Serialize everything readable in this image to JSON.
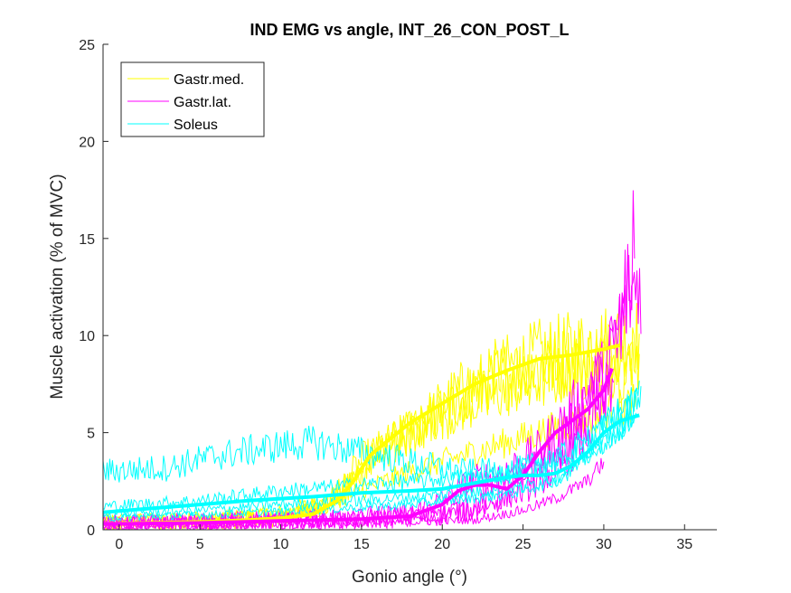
{
  "chart_data": {
    "type": "line",
    "title": "IND EMG vs angle, INT_26_CON_POST_L",
    "xlabel": "Gonio angle (°)",
    "ylabel": "Muscle activation (% of MVC)",
    "xlim": [
      -1,
      37
    ],
    "ylim": [
      0,
      25
    ],
    "xticks": [
      0,
      5,
      10,
      15,
      20,
      25,
      30,
      35
    ],
    "yticks": [
      0,
      5,
      10,
      15,
      20,
      25
    ],
    "grid": false,
    "legend_position": "top-left",
    "legend": [
      "Gastr.med.",
      "Gastr.lat.",
      "Soleus"
    ],
    "colors": {
      "Gastr.med.": "#ffff00",
      "Gastr.lat.": "#ff00ff",
      "Soleus": "#00ffff"
    },
    "series": [
      {
        "name": "Gastr.med.",
        "color": "#ffff00",
        "mean": {
          "x": [
            -1,
            2,
            5,
            8,
            10,
            12,
            13.5,
            14.5,
            15.5,
            16.5,
            18,
            20,
            22,
            24,
            26,
            28,
            30,
            31
          ],
          "y": [
            0.3,
            0.35,
            0.4,
            0.5,
            0.6,
            0.8,
            1.5,
            2.5,
            3.8,
            4.5,
            5.5,
            6.5,
            7.5,
            8.2,
            8.8,
            9.0,
            9.3,
            9.5
          ]
        },
        "trials": [
          {
            "x0": -1,
            "x1": 32.2,
            "pts": [
              [
                -1,
                0.4
              ],
              [
                5,
                0.5
              ],
              [
                10,
                0.8
              ],
              [
                13,
                1.5
              ],
              [
                15,
                3
              ],
              [
                17,
                4.5
              ],
              [
                20,
                6
              ],
              [
                23,
                8
              ],
              [
                26,
                9
              ],
              [
                29,
                9.5
              ],
              [
                32,
                10
              ]
            ],
            "noise": 1.4
          },
          {
            "x0": -1,
            "x1": 31.8,
            "pts": [
              [
                -1,
                0.3
              ],
              [
                5,
                0.4
              ],
              [
                10,
                0.6
              ],
              [
                13,
                1.2
              ],
              [
                15,
                3.5
              ],
              [
                18,
                5
              ],
              [
                21,
                7
              ],
              [
                24,
                8
              ],
              [
                27,
                8.5
              ],
              [
                30,
                9
              ],
              [
                32,
                8
              ]
            ],
            "noise": 1.5
          },
          {
            "x0": -1,
            "x1": 32.2,
            "pts": [
              [
                -1,
                0.2
              ],
              [
                6,
                0.4
              ],
              [
                11,
                0.7
              ],
              [
                14,
                2
              ],
              [
                16,
                4
              ],
              [
                19,
                5.5
              ],
              [
                22,
                6.5
              ],
              [
                25,
                7.5
              ],
              [
                28,
                8
              ],
              [
                32,
                9
              ]
            ],
            "noise": 1.3
          },
          {
            "x0": -1,
            "x1": 32.0,
            "pts": [
              [
                -1,
                0.5
              ],
              [
                8,
                0.7
              ],
              [
                12,
                1
              ],
              [
                15,
                2
              ],
              [
                18,
                3
              ],
              [
                22,
                4
              ],
              [
                26,
                5
              ],
              [
                30,
                6
              ],
              [
                32,
                6.5
              ]
            ],
            "noise": 1.0
          }
        ]
      },
      {
        "name": "Gastr.lat.",
        "color": "#ff00ff",
        "mean": {
          "x": [
            -1,
            5,
            10,
            15,
            18,
            20,
            21,
            22,
            23,
            24,
            25,
            26,
            27,
            28,
            29,
            30,
            30.5
          ],
          "y": [
            0.3,
            0.35,
            0.45,
            0.55,
            0.7,
            1.3,
            2.0,
            2.3,
            2.3,
            2.1,
            2.8,
            4.0,
            5.0,
            5.6,
            6.2,
            7.2,
            8.3
          ]
        },
        "trials": [
          {
            "x0": -1,
            "x1": 32.3,
            "pts": [
              [
                -1,
                0.3
              ],
              [
                10,
                0.5
              ],
              [
                18,
                0.8
              ],
              [
                20,
                1.5
              ],
              [
                22,
                2.5
              ],
              [
                24,
                3
              ],
              [
                26,
                4
              ],
              [
                28,
                6
              ],
              [
                30,
                8
              ],
              [
                31.5,
                12
              ],
              [
                32.3,
                13
              ]
            ],
            "noise": 1.6
          },
          {
            "x0": -1,
            "x1": 31.9,
            "pts": [
              [
                -1,
                0.2
              ],
              [
                12,
                0.4
              ],
              [
                20,
                0.8
              ],
              [
                23,
                1.5
              ],
              [
                25,
                2.5
              ],
              [
                27,
                4
              ],
              [
                29,
                6
              ],
              [
                31,
                10
              ],
              [
                31.8,
                14
              ]
            ],
            "noise": 1.8
          },
          {
            "x0": -1,
            "x1": 30.6,
            "pts": [
              [
                -1,
                0.3
              ],
              [
                10,
                0.4
              ],
              [
                18,
                0.6
              ],
              [
                22,
                1
              ],
              [
                25,
                2
              ],
              [
                27,
                3
              ],
              [
                29,
                5
              ],
              [
                30.5,
                7
              ]
            ],
            "noise": 1.4
          },
          {
            "x0": -1,
            "x1": 30.0,
            "pts": [
              [
                -1,
                0.2
              ],
              [
                15,
                0.3
              ],
              [
                22,
                0.5
              ],
              [
                25,
                1
              ],
              [
                27,
                1.6
              ],
              [
                29,
                2.5
              ],
              [
                30,
                3.5
              ]
            ],
            "noise": 0.7
          }
        ]
      },
      {
        "name": "Soleus",
        "color": "#00ffff",
        "mean": {
          "x": [
            -1,
            2,
            5,
            8,
            10,
            12,
            15,
            18,
            20,
            22,
            24,
            25,
            26,
            27,
            28,
            29,
            30,
            31,
            32.2
          ],
          "y": [
            0.9,
            1.1,
            1.3,
            1.5,
            1.6,
            1.7,
            1.9,
            2.0,
            2.1,
            2.4,
            2.7,
            2.8,
            2.8,
            2.9,
            3.3,
            4.0,
            5.0,
            5.6,
            5.9
          ]
        },
        "trials": [
          {
            "x0": -1,
            "x1": 32.3,
            "pts": [
              [
                -1,
                3
              ],
              [
                3,
                3.2
              ],
              [
                6,
                3.8
              ],
              [
                9,
                4.2
              ],
              [
                12,
                4.5
              ],
              [
                15,
                4
              ],
              [
                18,
                3.5
              ],
              [
                21,
                3
              ],
              [
                24,
                3
              ],
              [
                27,
                3.5
              ],
              [
                30,
                5
              ],
              [
                32.3,
                6.5
              ]
            ],
            "noise": 1.1
          },
          {
            "x0": -1,
            "x1": 32.0,
            "pts": [
              [
                -1,
                0.8
              ],
              [
                5,
                1
              ],
              [
                10,
                1.3
              ],
              [
                15,
                1.5
              ],
              [
                20,
                1.8
              ],
              [
                25,
                2.2
              ],
              [
                28,
                3
              ],
              [
                30,
                4.5
              ],
              [
                32,
                6
              ]
            ],
            "noise": 0.7
          },
          {
            "x0": -1,
            "x1": 31.8,
            "pts": [
              [
                -1,
                0.6
              ],
              [
                6,
                0.8
              ],
              [
                12,
                1
              ],
              [
                18,
                1.3
              ],
              [
                24,
                1.8
              ],
              [
                27,
                2.5
              ],
              [
                29,
                4
              ],
              [
                31,
                5
              ],
              [
                31.8,
                5.5
              ]
            ],
            "noise": 0.6
          },
          {
            "x0": -1,
            "x1": 32.2,
            "pts": [
              [
                -1,
                1.2
              ],
              [
                5,
                1.5
              ],
              [
                10,
                2
              ],
              [
                15,
                2.3
              ],
              [
                20,
                2.6
              ],
              [
                25,
                3
              ],
              [
                28,
                4
              ],
              [
                30,
                5.5
              ],
              [
                32,
                6.8
              ]
            ],
            "noise": 0.8
          }
        ]
      }
    ]
  }
}
